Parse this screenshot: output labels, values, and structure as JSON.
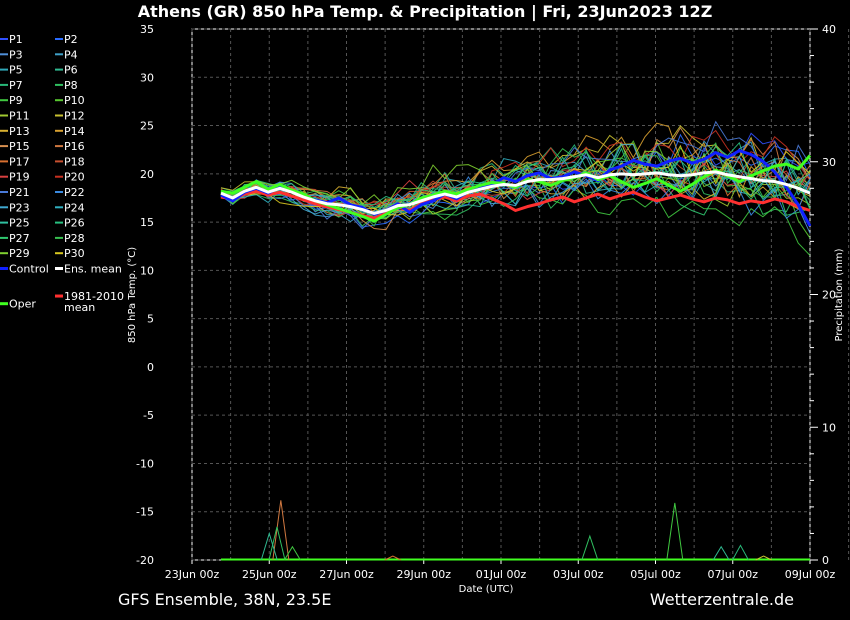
{
  "chart_data": {
    "type": "line",
    "title": "Athens  (GR)  850 hPa Temp. & Precipitation | Fri, 23Jun2023 12Z",
    "xlabel": "Date (UTC)",
    "ylabel": "850 hPa Temp. (°C)",
    "y2label": "Precipitation (mm)",
    "x_ticks": [
      "23Jun 00z",
      "25Jun 00z",
      "27Jun 00z",
      "29Jun 00z",
      "01Jul 00z",
      "03Jul 00z",
      "05Jul 00z",
      "07Jul 00z",
      "09Jul 00z"
    ],
    "y_ticks": [
      "35",
      "30",
      "25",
      "20",
      "15",
      "10",
      "5",
      "0",
      "-5",
      "-10",
      "-15",
      "-20"
    ],
    "y2_ticks": [
      "40",
      "30",
      "20",
      "10",
      "0"
    ],
    "ylim": [
      -20,
      35
    ],
    "y2lim": [
      0,
      40
    ],
    "grid": true,
    "legend_placement": "left",
    "footer_left": "GFS Ensemble, 38N, 23.5E",
    "footer_right": "Wetterzentrale.de",
    "legend": [
      {
        "name": "P1",
        "color": "#3050ff"
      },
      {
        "name": "P2",
        "color": "#2a6cff"
      },
      {
        "name": "P3",
        "color": "#4f8fd8"
      },
      {
        "name": "P4",
        "color": "#3fa0c8"
      },
      {
        "name": "P5",
        "color": "#30a8b8"
      },
      {
        "name": "P6",
        "color": "#30b890"
      },
      {
        "name": "P7",
        "color": "#28b878"
      },
      {
        "name": "P8",
        "color": "#30c060"
      },
      {
        "name": "P9",
        "color": "#40c840"
      },
      {
        "name": "P10",
        "color": "#58c830"
      },
      {
        "name": "P11",
        "color": "#a0c830"
      },
      {
        "name": "P12",
        "color": "#c8c030"
      },
      {
        "name": "P13",
        "color": "#d8b030"
      },
      {
        "name": "P14",
        "color": "#d8a030"
      },
      {
        "name": "P15",
        "color": "#d89050"
      },
      {
        "name": "P16",
        "color": "#d07840"
      },
      {
        "name": "P17",
        "color": "#d87030"
      },
      {
        "name": "P18",
        "color": "#c85030"
      },
      {
        "name": "P19",
        "color": "#d84040"
      },
      {
        "name": "P20",
        "color": "#c83020"
      },
      {
        "name": "P21",
        "color": "#4a7ad8"
      },
      {
        "name": "P22",
        "color": "#3a8ae0"
      },
      {
        "name": "P23",
        "color": "#40a8d0"
      },
      {
        "name": "P24",
        "color": "#30b0c0"
      },
      {
        "name": "P25",
        "color": "#30c0a0"
      },
      {
        "name": "P26",
        "color": "#28c080"
      },
      {
        "name": "P27",
        "color": "#30c870"
      },
      {
        "name": "P28",
        "color": "#38c050"
      },
      {
        "name": "P29",
        "color": "#80d030"
      },
      {
        "name": "P30",
        "color": "#d8c820"
      },
      {
        "name": "Control",
        "color": "#1020ff"
      },
      {
        "name": "Ens. mean",
        "color": "#ffffff"
      },
      {
        "name": "1981-2010",
        "name2": "mean",
        "color": "#ff3030"
      },
      {
        "name": "Oper",
        "color": "#40ff20"
      }
    ],
    "series": [
      {
        "name": "Control",
        "color": "#1020ff",
        "width": 3,
        "values": [
          17.8,
          17.2,
          18.1,
          18.5,
          18.0,
          18.6,
          18.2,
          17.6,
          17.3,
          17.0,
          17.5,
          16.8,
          16.5,
          15.8,
          16.2,
          16.9,
          16.0,
          16.8,
          17.2,
          17.9,
          17.4,
          18.2,
          18.5,
          18.9,
          19.6,
          19.2,
          19.8,
          20.1,
          19.5,
          19.7,
          20.2,
          19.8,
          19.3,
          20.4,
          20.8,
          21.4,
          21.0,
          20.8,
          21.3,
          21.6,
          21.1,
          21.5,
          22.2,
          21.7,
          22.4,
          22.0,
          21.3,
          20.2,
          18.6,
          16.8,
          14.6
        ]
      },
      {
        "name": "Oper",
        "color": "#40ff20",
        "width": 3,
        "values": [
          18.2,
          18.0,
          18.6,
          19.2,
          18.4,
          18.9,
          18.3,
          17.9,
          17.2,
          16.8,
          16.4,
          16.0,
          15.6,
          15.1,
          15.8,
          16.5,
          16.8,
          17.5,
          17.8,
          18.2,
          17.9,
          18.4,
          18.8,
          19.1,
          19.0,
          18.6,
          19.4,
          19.2,
          18.8,
          19.3,
          19.6,
          20.1,
          19.4,
          19.8,
          19.2,
          18.6,
          19.0,
          19.5,
          18.8,
          18.2,
          18.9,
          19.7,
          20.4,
          19.8,
          19.2,
          19.8,
          20.3,
          20.8,
          21.0,
          20.5,
          21.9
        ]
      },
      {
        "name": "Ens. mean",
        "color": "#ffffff",
        "width": 3,
        "values": [
          18.0,
          17.5,
          18.2,
          18.6,
          18.1,
          18.5,
          18.1,
          17.6,
          17.2,
          16.9,
          16.8,
          16.6,
          16.3,
          15.9,
          16.2,
          16.7,
          16.8,
          17.2,
          17.6,
          17.9,
          17.6,
          18.1,
          18.4,
          18.7,
          18.9,
          18.8,
          19.2,
          19.4,
          19.4,
          19.5,
          19.7,
          19.9,
          19.6,
          19.9,
          20.0,
          19.9,
          20.0,
          20.1,
          19.9,
          19.8,
          19.9,
          20.1,
          20.2,
          19.9,
          19.7,
          19.5,
          19.3,
          19.2,
          18.9,
          18.5,
          18.0
        ]
      },
      {
        "name": "1981-2010",
        "color": "#ff3030",
        "width": 3,
        "values": [
          17.6,
          17.4,
          17.9,
          18.2,
          17.8,
          18.1,
          17.7,
          17.3,
          16.9,
          16.6,
          16.3,
          16.0,
          15.7,
          15.4,
          15.9,
          16.6,
          16.2,
          16.9,
          17.3,
          17.6,
          17.2,
          17.7,
          17.9,
          17.4,
          16.9,
          16.2,
          16.6,
          16.9,
          17.3,
          17.6,
          17.1,
          17.5,
          17.9,
          17.4,
          17.8,
          18.1,
          17.6,
          17.2,
          17.5,
          17.8,
          17.4,
          17.1,
          17.5,
          17.3,
          16.9,
          17.2,
          17.0,
          17.4,
          17.1,
          16.6,
          16.2
        ]
      }
    ],
    "precip_x_days": [
      0,
      1.5,
      2.0,
      2.4,
      2.6,
      3.0,
      3.2,
      3.5,
      5.0,
      6.5,
      7.1,
      8.0,
      9.0,
      10.0,
      10.9,
      11.2,
      11.5,
      12.4,
      12.7,
      13.3,
      14.0,
      14.7,
      15.1,
      15.6,
      15.9
    ],
    "precip_spikes": [
      {
        "day": 2.3,
        "mm": 4.5,
        "color": "#d07840"
      },
      {
        "day": 2.2,
        "mm": 2.5,
        "color": "#30c060"
      },
      {
        "day": 2.0,
        "mm": 2.0,
        "color": "#30b890"
      },
      {
        "day": 2.6,
        "mm": 1.0,
        "color": "#40c840"
      },
      {
        "day": 5.2,
        "mm": 0.3,
        "color": "#d87030"
      },
      {
        "day": 10.3,
        "mm": 1.8,
        "color": "#30c060"
      },
      {
        "day": 12.5,
        "mm": 4.3,
        "color": "#40c840"
      },
      {
        "day": 13.7,
        "mm": 1.0,
        "color": "#30b890"
      },
      {
        "day": 14.2,
        "mm": 1.1,
        "color": "#28b878"
      },
      {
        "day": 14.8,
        "mm": 0.3,
        "color": "#c8c030"
      }
    ]
  }
}
